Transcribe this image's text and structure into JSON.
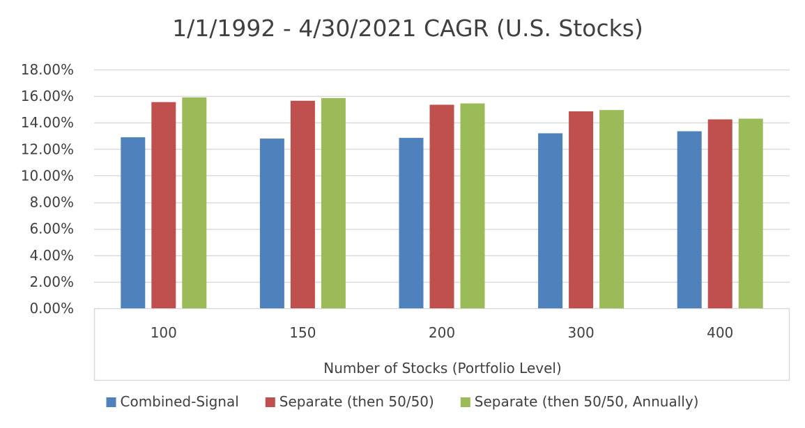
{
  "chart_data": {
    "type": "bar",
    "title": "1/1/1992 - 4/30/2021 CAGR (U.S. Stocks)",
    "xlabel": "Number of Stocks (Portfolio Level)",
    "ylabel": "",
    "categories": [
      "100",
      "150",
      "200",
      "300",
      "400"
    ],
    "ylim": [
      0,
      18
    ],
    "yticks": [
      0,
      2,
      4,
      6,
      8,
      10,
      12,
      14,
      16,
      18
    ],
    "ytick_labels": [
      "0.00%",
      "2.00%",
      "4.00%",
      "6.00%",
      "8.00%",
      "10.00%",
      "12.00%",
      "14.00%",
      "16.00%",
      "18.00%"
    ],
    "grid": true,
    "legend_position": "bottom",
    "series": [
      {
        "name": "Combined-Signal",
        "color": "#4F81BD",
        "values": [
          12.9,
          12.8,
          12.85,
          13.2,
          13.35
        ]
      },
      {
        "name": "Separate (then 50/50)",
        "color": "#C0504D",
        "values": [
          15.55,
          15.65,
          15.35,
          14.85,
          14.25
        ]
      },
      {
        "name": "Separate (then 50/50, Annually)",
        "color": "#9BBB59",
        "values": [
          15.9,
          15.85,
          15.45,
          14.95,
          14.3
        ]
      }
    ]
  }
}
